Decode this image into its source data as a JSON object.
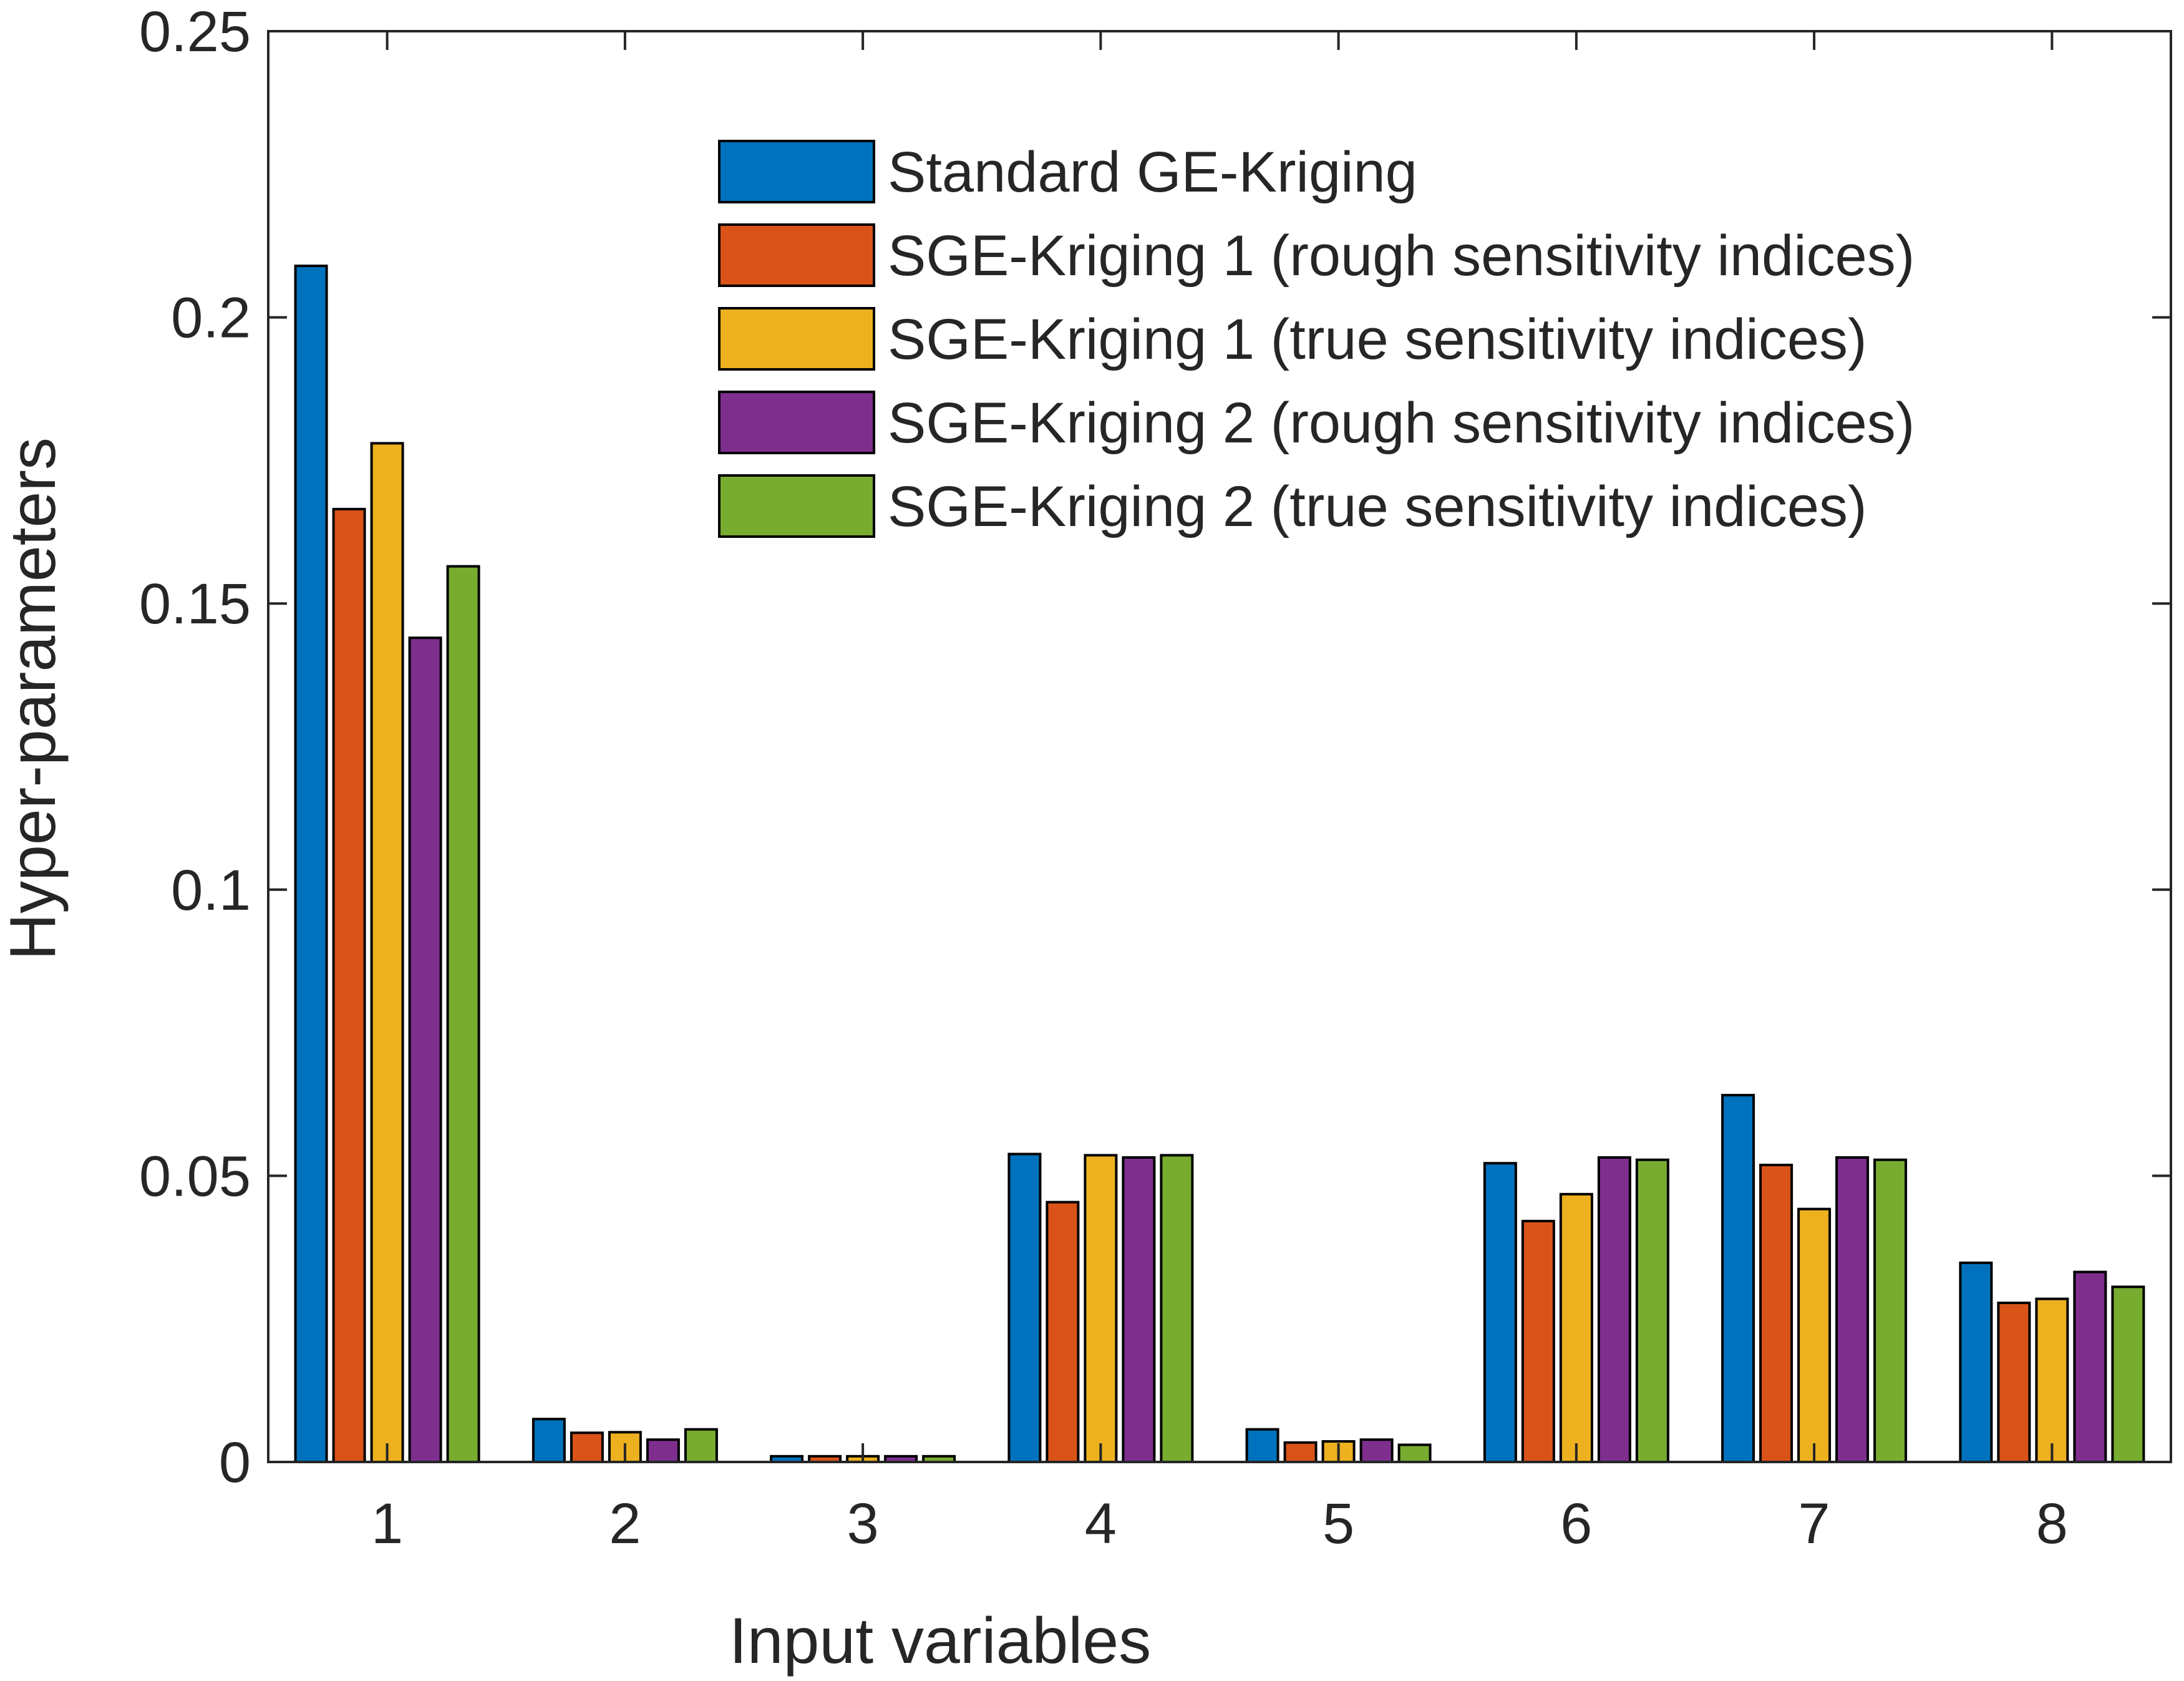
{
  "chart_data": {
    "type": "bar",
    "title": "",
    "xlabel": "Input variables",
    "ylabel": "Hyper-parameters",
    "ylim": [
      0,
      0.25
    ],
    "yticks": [
      0,
      0.05,
      0.1,
      0.15,
      0.2,
      0.25
    ],
    "ytick_labels": [
      "0",
      "0.05",
      "0.1",
      "0.15",
      "0.2",
      "0.25"
    ],
    "categories": [
      "1",
      "2",
      "3",
      "4",
      "5",
      "6",
      "7",
      "8"
    ],
    "grid": false,
    "legend_position": "top-right",
    "series": [
      {
        "name": "Standard GE-Kriging",
        "color": "#0072BD",
        "values": [
          0.209,
          0.0075,
          0.001,
          0.0538,
          0.0057,
          0.0522,
          0.0641,
          0.0348
        ]
      },
      {
        "name": "SGE-Kriging 1 (rough sensitivity indices)",
        "color": "#D95319",
        "values": [
          0.1665,
          0.0051,
          0.001,
          0.0454,
          0.0034,
          0.0421,
          0.0519,
          0.0278
        ]
      },
      {
        "name": "SGE-Kriging 1 (true sensitivity indices)",
        "color": "#EDB120",
        "values": [
          0.178,
          0.0052,
          0.001,
          0.0536,
          0.0036,
          0.0468,
          0.0442,
          0.0285
        ]
      },
      {
        "name": "SGE-Kriging 2 (rough sensitivity indices)",
        "color": "#7E2F8E",
        "values": [
          0.144,
          0.0039,
          0.001,
          0.0532,
          0.0039,
          0.0532,
          0.0532,
          0.0332
        ]
      },
      {
        "name": "SGE-Kriging 2 (true sensitivity indices)",
        "color": "#77AC30",
        "values": [
          0.1565,
          0.0057,
          0.001,
          0.0536,
          0.003,
          0.0528,
          0.0528,
          0.0306
        ]
      }
    ]
  }
}
